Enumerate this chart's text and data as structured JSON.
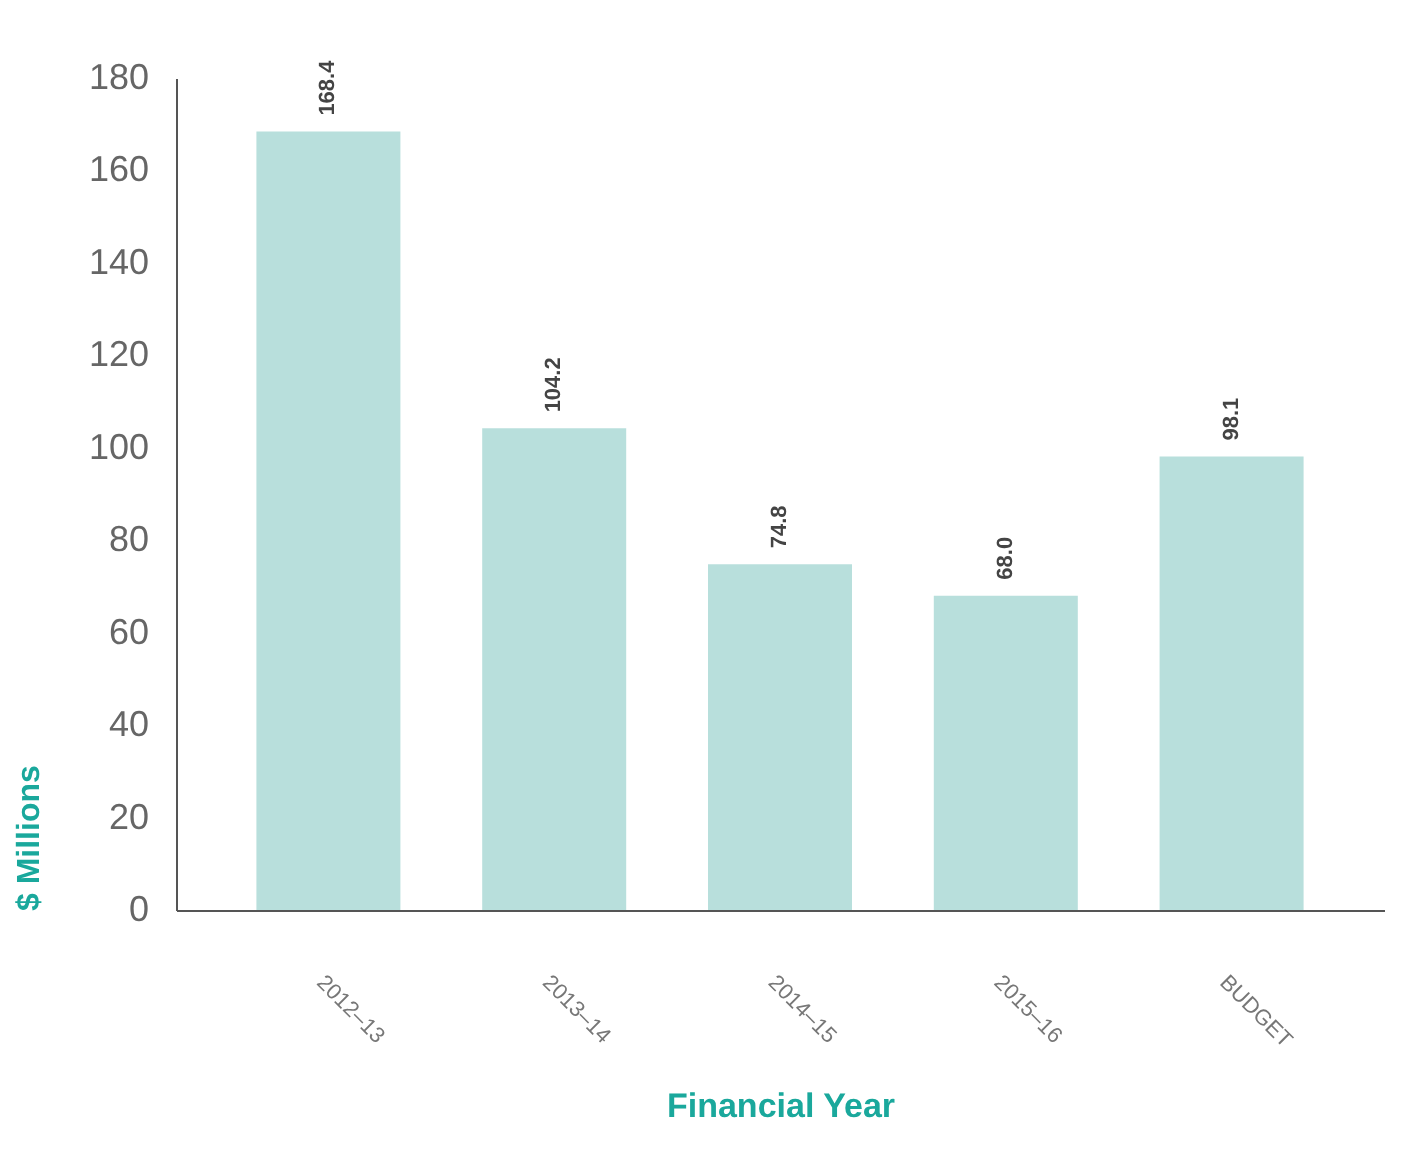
{
  "chart_data": {
    "type": "bar",
    "xlabel": "Financial Year",
    "ylabel": "$ Millions",
    "categories": [
      "2012–13",
      "2013–14",
      "2014–15",
      "2015–16",
      "BUDGET"
    ],
    "values": [
      168.4,
      104.2,
      74.8,
      68.0,
      98.1
    ],
    "value_labels": [
      "168.4",
      "104.2",
      "74.8",
      "68.0",
      "98.1"
    ],
    "color": "#b8dfdc",
    "ylim": [
      0,
      180
    ],
    "yticks": [
      0,
      20,
      40,
      60,
      80,
      100,
      120,
      140,
      160,
      180
    ],
    "grid": false
  }
}
